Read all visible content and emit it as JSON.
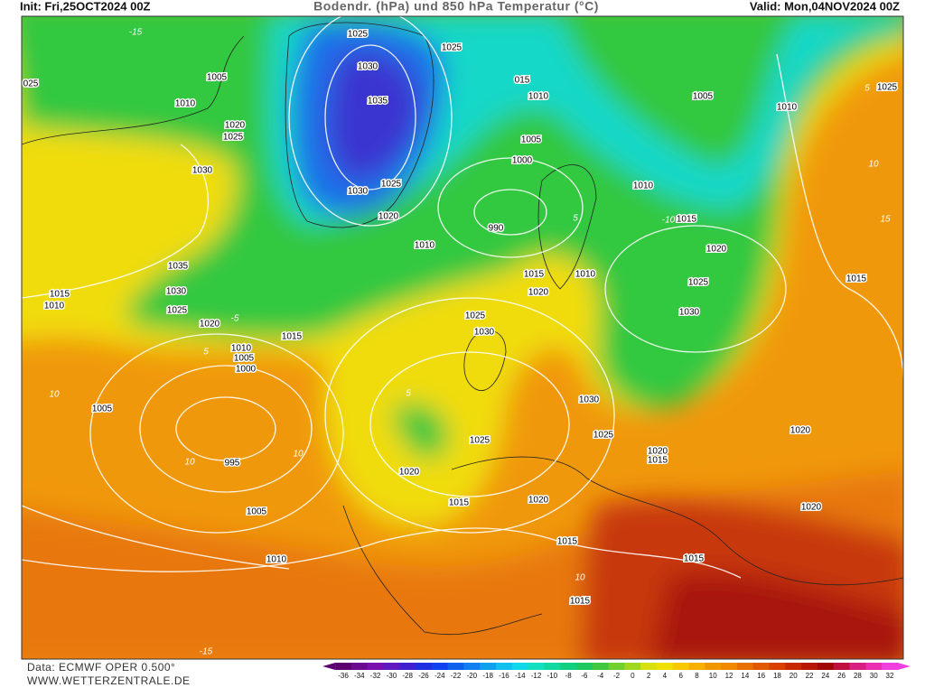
{
  "header": {
    "init": "Init: Fri,25OCT2024 00Z",
    "title": "Bodendr. (hPa) und 850 hPa Temperatur (°C)",
    "valid": "Valid: Mon,04NOV2024 00Z"
  },
  "map": {
    "isobar_labels": [
      "1025",
      "1025",
      "1030",
      "1005",
      "015",
      "1010",
      "1005",
      "1010",
      "1035",
      "1020",
      "1025",
      "1005",
      "1000",
      "1030",
      "1025",
      "1030",
      "1010",
      "1020",
      "990",
      "1015",
      "1010",
      "1020",
      "1035",
      "1015",
      "1010",
      "1025",
      "1015",
      "1030",
      "1020",
      "1015",
      "1010",
      "1025",
      "1025",
      "1030",
      "1020",
      "1030",
      "1015",
      "1010",
      "1005",
      "1000",
      "1030",
      "1005",
      "1025",
      "1020",
      "1025",
      "1020",
      "1015",
      "995",
      "1020",
      "1015",
      "1020",
      "1020",
      "1005",
      "1015",
      "1010",
      "1015",
      "1015",
      "1025",
      "1010",
      "025"
    ],
    "temperature_labels": [
      "-15",
      "5",
      "10",
      "15",
      "5",
      "10",
      "10",
      "5",
      "-5",
      "10",
      "10",
      "-15",
      "5",
      "-10"
    ]
  },
  "colorbar": {
    "ticks": [
      -36,
      -34,
      -32,
      -30,
      -28,
      -26,
      -24,
      -22,
      -20,
      -18,
      -16,
      -14,
      -12,
      -10,
      -8,
      -6,
      -4,
      -2,
      0,
      2,
      4,
      6,
      8,
      10,
      12,
      14,
      16,
      18,
      20,
      22,
      24,
      26,
      28,
      30,
      32
    ],
    "colors": [
      "#5c0070",
      "#6a0a90",
      "#7a10b0",
      "#6018c0",
      "#4020d0",
      "#2030e0",
      "#1040f0",
      "#1060f0",
      "#1080f0",
      "#10a0f0",
      "#10c0f0",
      "#10d8e8",
      "#10e0c0",
      "#10d8a0",
      "#10d080",
      "#20c860",
      "#40c840",
      "#70d030",
      "#a0d820",
      "#d8e010",
      "#f0e000",
      "#f8c800",
      "#f8b000",
      "#f09800",
      "#f08800",
      "#e87000",
      "#e05800",
      "#d84000",
      "#c82800",
      "#b81800",
      "#a00808",
      "#c01040",
      "#d82080",
      "#e830b0",
      "#f040e0"
    ]
  },
  "footer": {
    "data": "Data: ECMWF OPER 0.500°",
    "source": "WWW.WETTERZENTRALE.DE"
  }
}
